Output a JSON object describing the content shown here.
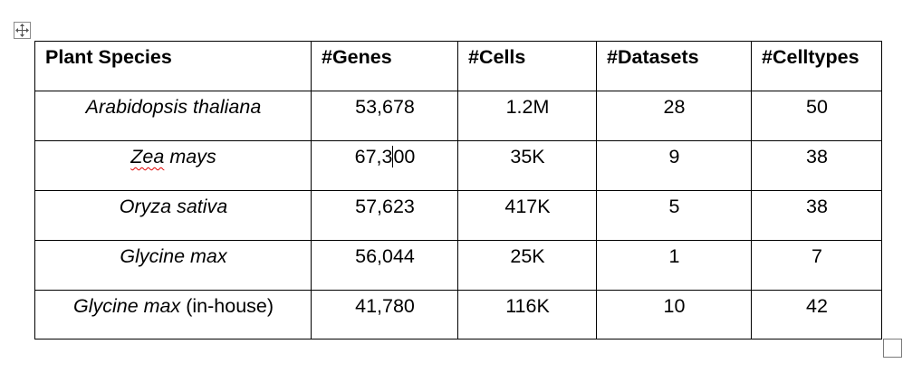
{
  "table": {
    "headers": [
      "Plant Species",
      "#Genes",
      "#Cells",
      "#Datasets",
      "#Celltypes"
    ],
    "rows": [
      {
        "species": "Arabidopsis thaliana",
        "suffix": "",
        "genes": "53,678",
        "cells": "1.2M",
        "datasets": "28",
        "celltypes": "50"
      },
      {
        "species": "Zea mays",
        "suffix": "",
        "genes": "67,300",
        "cells": "35K",
        "datasets": "9",
        "celltypes": "38"
      },
      {
        "species": "Oryza sativa",
        "suffix": "",
        "genes": "57,623",
        "cells": "417K",
        "datasets": "5",
        "celltypes": "38"
      },
      {
        "species": "Glycine max",
        "suffix": "",
        "genes": "56,044",
        "cells": "25K",
        "datasets": "1",
        "celltypes": "7"
      },
      {
        "species": "Glycine max",
        "suffix": " (in-house)",
        "genes": "41,780",
        "cells": "116K",
        "datasets": "10",
        "celltypes": "42"
      }
    ],
    "spellcheck_word": "Zea",
    "spellcheck_rest": " mays",
    "caret_genes_prefix": "67,3",
    "caret_genes_suffix": "00"
  },
  "handles": {
    "move_icon": "four-way-arrow-icon",
    "resize_icon": "table-resize-icon"
  },
  "colors": {
    "border": "#000000",
    "spellcheck": "#e00000",
    "handle_border": "#8a8a8a"
  }
}
